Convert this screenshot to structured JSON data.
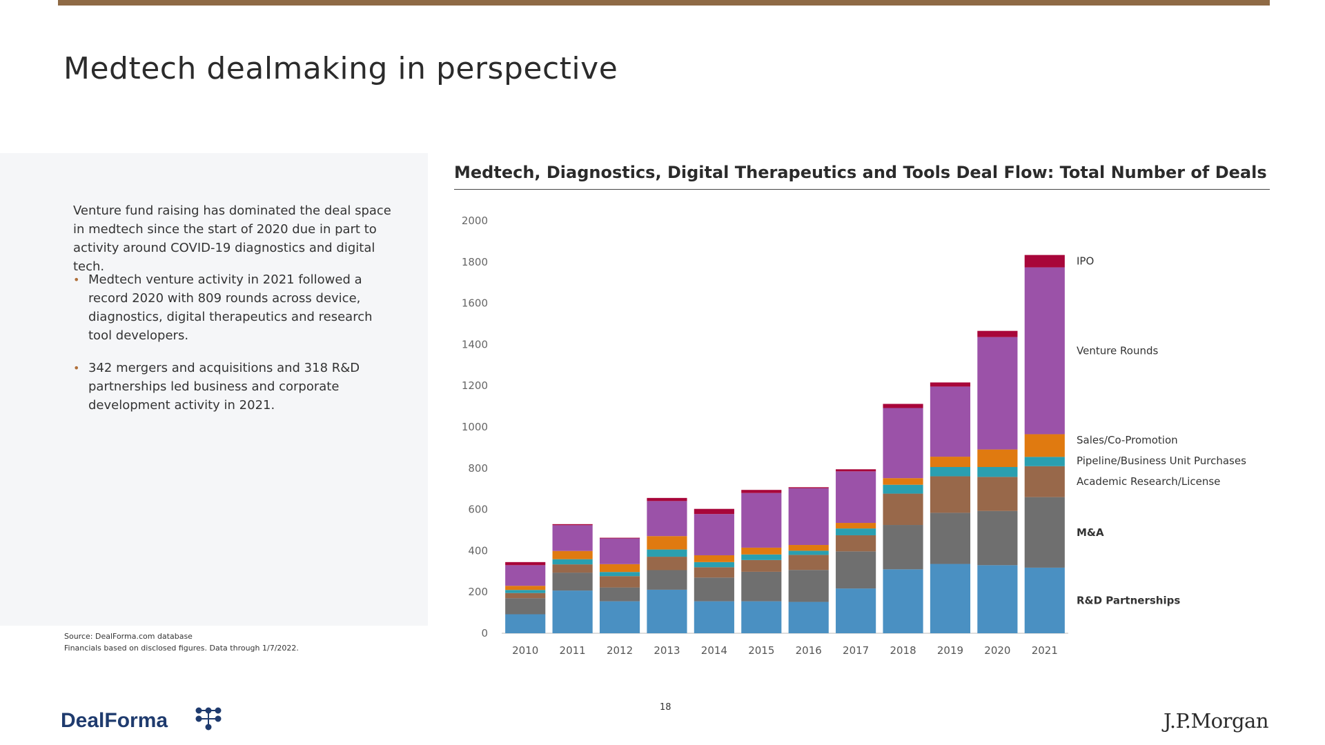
{
  "slide": {
    "title": "Medtech dealmaking in perspective",
    "intro": "Venture fund raising has dominated the deal space in medtech since the start of 2020 due in part to activity around COVID-19 diagnostics and digital tech.",
    "bullets": [
      "Medtech venture activity in 2021 followed a record 2020 with 809 rounds across device, diagnostics, digital therapeutics and research tool developers.",
      "342 mergers and acquisitions and 318 R&D partnerships led business and corporate development activity in 2021."
    ],
    "source_line1": "Source: DealForma.com database",
    "source_line2": "Financials based on disclosed figures. Data through 1/7/2022.",
    "page_number": "18",
    "logo_left": "DealForma",
    "logo_right": "J.P.Morgan",
    "accent_color": "#8f6a45"
  },
  "chart_data": {
    "type": "bar",
    "stacked": true,
    "title": "Medtech, Diagnostics, Digital Therapeutics and Tools Deal Flow: Total Number of Deals",
    "xlabel": "",
    "ylabel": "",
    "ylim": [
      0,
      2000
    ],
    "yticks": [
      0,
      200,
      400,
      600,
      800,
      1000,
      1200,
      1400,
      1600,
      1800,
      2000
    ],
    "categories": [
      "2010",
      "2011",
      "2012",
      "2013",
      "2014",
      "2015",
      "2016",
      "2017",
      "2018",
      "2019",
      "2020",
      "2021"
    ],
    "legend_placement": "right, inline labels",
    "series": [
      {
        "name": "R&D Partnerships",
        "color": "#4a90c2",
        "values": [
          92,
          207,
          155,
          211,
          155,
          155,
          152,
          217,
          310,
          336,
          330,
          318
        ]
      },
      {
        "name": "M&A",
        "color": "#6f6f6f",
        "values": [
          78,
          87,
          67,
          95,
          115,
          143,
          155,
          180,
          215,
          248,
          263,
          342
        ]
      },
      {
        "name": "Academic Research/License",
        "color": "#98684a",
        "values": [
          25,
          40,
          55,
          65,
          50,
          57,
          73,
          78,
          152,
          177,
          165,
          150
        ]
      },
      {
        "name": "Pipeline/Business Unit Purchases",
        "color": "#2a9fb0",
        "values": [
          15,
          25,
          20,
          35,
          25,
          27,
          20,
          33,
          43,
          45,
          48,
          45
        ]
      },
      {
        "name": "Sales/Co-Promotion",
        "color": "#e07a10",
        "values": [
          20,
          40,
          38,
          65,
          33,
          33,
          28,
          27,
          32,
          50,
          85,
          110
        ]
      },
      {
        "name": "Venture Rounds",
        "color": "#9b52a8",
        "values": [
          100,
          125,
          125,
          170,
          200,
          265,
          275,
          250,
          340,
          340,
          545,
          809
        ]
      },
      {
        "name": "IPO",
        "color": "#a8063a",
        "values": [
          15,
          5,
          3,
          15,
          25,
          15,
          5,
          10,
          20,
          20,
          30,
          60
        ]
      }
    ]
  }
}
